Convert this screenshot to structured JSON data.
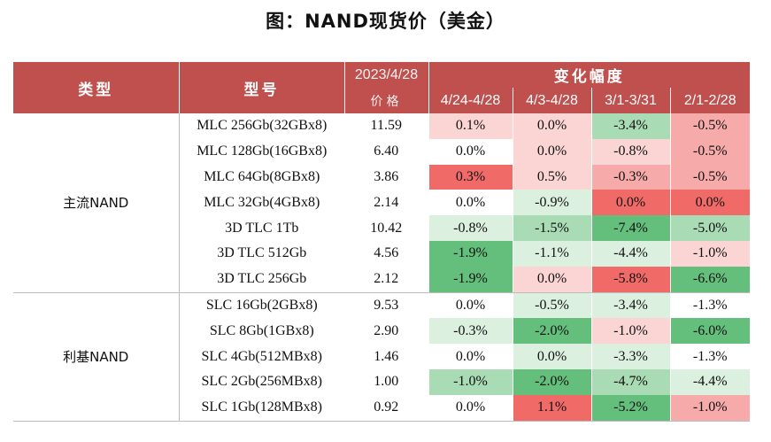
{
  "title": "图：NAND现货价（美金）",
  "header": {
    "type_label": "类型",
    "model_label": "型号",
    "date_label": "2023/4/28",
    "price_label": "价格",
    "change_label": "变化幅度",
    "periods": [
      "4/24-4/28",
      "4/3-4/28",
      "3/1-3/31",
      "2/1-2/28"
    ]
  },
  "colors": {
    "header_bg": "#c0504d",
    "pos_strong": "#f06a68",
    "pos_mid": "#f6aaa9",
    "pos_light": "#fad5d4",
    "neutral": "#ffffff",
    "neg_light": "#dcf0e0",
    "neg_mid": "#a9dbb4",
    "neg_strong": "#63bf7b"
  },
  "groups": [
    {
      "name": "主流NAND",
      "rows": [
        {
          "model": "MLC 256Gb(32GBx8)",
          "price": "11.59",
          "changes": [
            "0.1%",
            "0.0%",
            "-3.4%",
            "-0.5%"
          ],
          "tones": [
            "pos_light",
            "pos_light",
            "neg_mid",
            "pos_mid"
          ]
        },
        {
          "model": "MLC 128Gb(16GBx8)",
          "price": "6.40",
          "changes": [
            "0.0%",
            "0.0%",
            "-0.8%",
            "-0.5%"
          ],
          "tones": [
            "neutral",
            "pos_light",
            "pos_light",
            "pos_mid"
          ]
        },
        {
          "model": "MLC 64Gb(8GBx8)",
          "price": "3.86",
          "changes": [
            "0.3%",
            "0.5%",
            "-0.3%",
            "-0.5%"
          ],
          "tones": [
            "pos_strong",
            "pos_light",
            "pos_mid",
            "pos_mid"
          ]
        },
        {
          "model": "MLC 32Gb(4GBx8)",
          "price": "2.14",
          "changes": [
            "0.0%",
            "-0.9%",
            "0.0%",
            "0.0%"
          ],
          "tones": [
            "neutral",
            "neg_light",
            "pos_strong",
            "pos_strong"
          ]
        },
        {
          "model": "3D TLC 1Tb",
          "price": "10.42",
          "changes": [
            "-0.8%",
            "-1.5%",
            "-7.4%",
            "-5.0%"
          ],
          "tones": [
            "neg_light",
            "neg_mid",
            "neg_strong",
            "neg_mid"
          ]
        },
        {
          "model": "3D TLC 512Gb",
          "price": "4.56",
          "changes": [
            "-1.9%",
            "-1.1%",
            "-4.4%",
            "-1.0%"
          ],
          "tones": [
            "neg_strong",
            "neg_light",
            "neg_light",
            "pos_light"
          ]
        },
        {
          "model": "3D TLC 256Gb",
          "price": "2.12",
          "changes": [
            "-1.9%",
            "0.0%",
            "-5.8%",
            "-6.6%"
          ],
          "tones": [
            "neg_strong",
            "pos_light",
            "pos_strong",
            "neg_strong"
          ]
        }
      ]
    },
    {
      "name": "利基NAND",
      "rows": [
        {
          "model": "SLC 16Gb(2GBx8)",
          "price": "9.53",
          "changes": [
            "0.0%",
            "-0.5%",
            "-3.4%",
            "-1.3%"
          ],
          "tones": [
            "neutral",
            "neg_light",
            "neg_light",
            "neutral"
          ]
        },
        {
          "model": "SLC 8Gb(1GBx8)",
          "price": "2.90",
          "changes": [
            "-0.3%",
            "-2.0%",
            "-1.0%",
            "-6.0%"
          ],
          "tones": [
            "neg_light",
            "neg_strong",
            "pos_light",
            "neg_strong"
          ]
        },
        {
          "model": "SLC 4Gb(512MBx8)",
          "price": "1.46",
          "changes": [
            "0.0%",
            "0.0%",
            "-3.3%",
            "-1.3%"
          ],
          "tones": [
            "neutral",
            "neg_light",
            "neg_light",
            "neutral"
          ]
        },
        {
          "model": "SLC 2Gb(256MBx8)",
          "price": "1.00",
          "changes": [
            "-1.0%",
            "-2.0%",
            "-4.7%",
            "-4.4%"
          ],
          "tones": [
            "neg_mid",
            "neg_strong",
            "neg_mid",
            "neg_light"
          ]
        },
        {
          "model": "SLC 1Gb(128MBx8)",
          "price": "0.92",
          "changes": [
            "0.0%",
            "1.1%",
            "-5.2%",
            "-1.0%"
          ],
          "tones": [
            "neutral",
            "pos_strong",
            "neg_strong",
            "pos_mid"
          ]
        }
      ]
    }
  ]
}
